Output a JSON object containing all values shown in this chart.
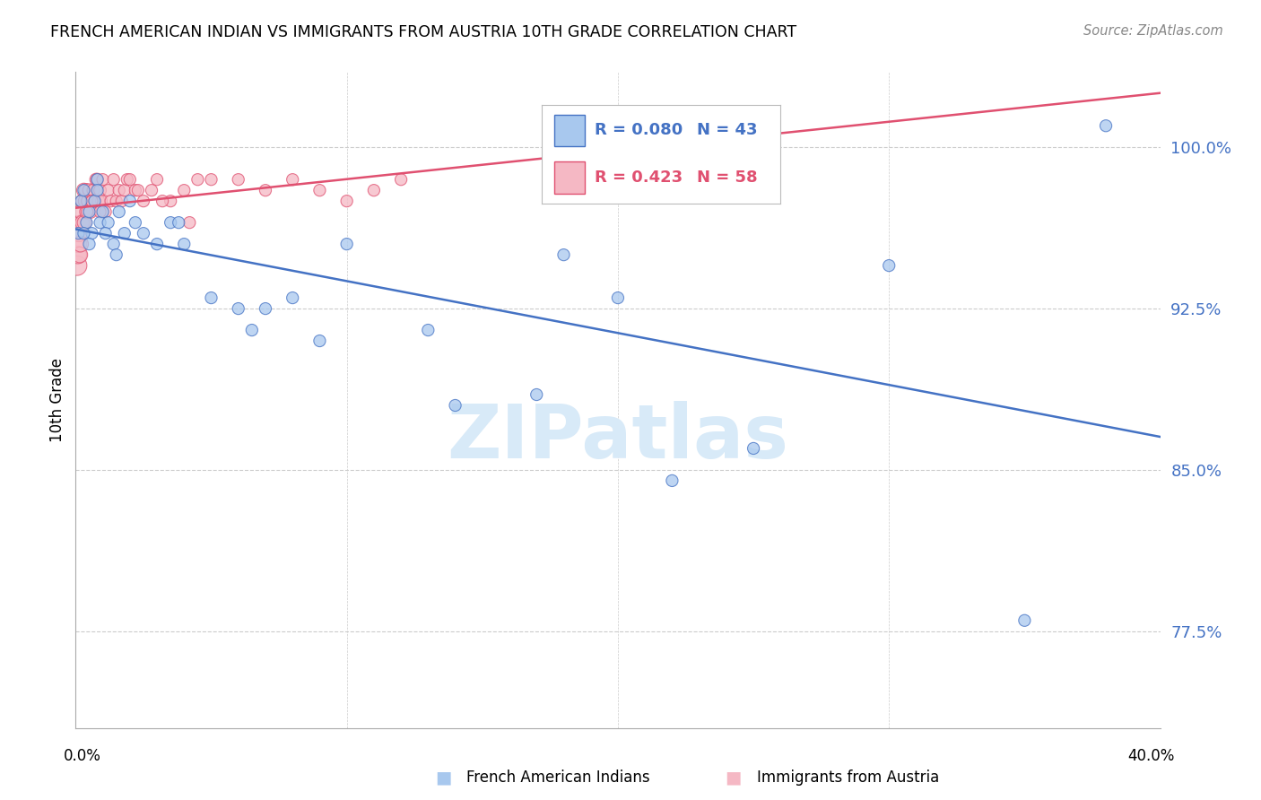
{
  "title": "FRENCH AMERICAN INDIAN VS IMMIGRANTS FROM AUSTRIA 10TH GRADE CORRELATION CHART",
  "source": "Source: ZipAtlas.com",
  "ylabel": "10th Grade",
  "legend_blue_R": "0.080",
  "legend_blue_N": "43",
  "legend_pink_R": "0.423",
  "legend_pink_N": "58",
  "yticks": [
    77.5,
    85.0,
    92.5,
    100.0
  ],
  "ytick_labels": [
    "77.5%",
    "85.0%",
    "92.5%",
    "100.0%"
  ],
  "xlim": [
    0.0,
    40.0
  ],
  "ylim": [
    73.0,
    103.5
  ],
  "blue_color": "#A8C8EE",
  "pink_color": "#F5B8C4",
  "trend_blue": "#4472C4",
  "trend_pink": "#E05070",
  "watermark": "ZIPatlas",
  "watermark_color": "#D8EAF8",
  "blue_points_x": [
    0.1,
    0.2,
    0.3,
    0.4,
    0.5,
    0.6,
    0.7,
    0.8,
    0.9,
    1.0,
    1.2,
    1.4,
    1.6,
    1.8,
    2.0,
    2.5,
    3.0,
    3.5,
    4.0,
    5.0,
    6.0,
    7.0,
    8.0,
    10.0,
    13.0,
    17.0,
    20.0,
    22.0,
    25.0,
    30.0,
    35.0,
    38.0,
    0.3,
    0.5,
    0.8,
    1.1,
    1.5,
    2.2,
    3.8,
    6.5,
    9.0,
    14.0,
    18.0
  ],
  "blue_points_y": [
    96.0,
    97.5,
    98.0,
    96.5,
    97.0,
    96.0,
    97.5,
    98.5,
    96.5,
    97.0,
    96.5,
    95.5,
    97.0,
    96.0,
    97.5,
    96.0,
    95.5,
    96.5,
    95.5,
    93.0,
    92.5,
    92.5,
    93.0,
    95.5,
    91.5,
    88.5,
    93.0,
    84.5,
    86.0,
    94.5,
    78.0,
    101.0,
    96.0,
    95.5,
    98.0,
    96.0,
    95.0,
    96.5,
    96.5,
    91.5,
    91.0,
    88.0,
    95.0
  ],
  "blue_sizes": [
    90,
    90,
    90,
    90,
    90,
    90,
    90,
    90,
    90,
    90,
    90,
    90,
    90,
    90,
    90,
    90,
    90,
    90,
    90,
    90,
    90,
    90,
    90,
    90,
    90,
    90,
    90,
    90,
    90,
    90,
    90,
    90,
    90,
    90,
    90,
    90,
    90,
    90,
    90,
    90,
    90,
    90,
    90
  ],
  "pink_points_x": [
    0.05,
    0.08,
    0.1,
    0.12,
    0.15,
    0.18,
    0.2,
    0.22,
    0.25,
    0.28,
    0.3,
    0.32,
    0.35,
    0.38,
    0.4,
    0.45,
    0.5,
    0.55,
    0.6,
    0.65,
    0.7,
    0.75,
    0.8,
    0.85,
    0.9,
    0.95,
    1.0,
    1.1,
    1.2,
    1.3,
    1.4,
    1.5,
    1.6,
    1.7,
    1.8,
    1.9,
    2.0,
    2.2,
    2.5,
    2.8,
    3.0,
    3.5,
    4.0,
    4.5,
    5.0,
    6.0,
    7.0,
    8.0,
    9.0,
    10.0,
    11.0,
    12.0,
    4.2,
    3.2,
    2.3,
    0.42,
    0.6,
    0.9
  ],
  "pink_points_y": [
    94.5,
    95.0,
    95.5,
    96.0,
    95.0,
    95.5,
    96.5,
    97.0,
    96.5,
    97.5,
    98.0,
    96.5,
    97.5,
    98.0,
    97.0,
    97.5,
    98.0,
    97.0,
    97.5,
    98.0,
    97.5,
    98.5,
    98.5,
    97.5,
    98.0,
    97.5,
    98.5,
    97.0,
    98.0,
    97.5,
    98.5,
    97.5,
    98.0,
    97.5,
    98.0,
    98.5,
    98.5,
    98.0,
    97.5,
    98.0,
    98.5,
    97.5,
    98.0,
    98.5,
    98.5,
    98.5,
    98.0,
    98.5,
    98.0,
    97.5,
    98.0,
    98.5,
    96.5,
    97.5,
    98.0,
    97.0,
    97.5,
    97.0
  ],
  "pink_sizes": [
    250,
    200,
    180,
    180,
    160,
    160,
    150,
    150,
    140,
    140,
    130,
    130,
    120,
    120,
    120,
    110,
    110,
    110,
    100,
    100,
    100,
    100,
    100,
    100,
    100,
    90,
    90,
    90,
    90,
    90,
    90,
    90,
    90,
    90,
    90,
    90,
    90,
    90,
    90,
    90,
    90,
    90,
    90,
    90,
    90,
    90,
    90,
    90,
    90,
    90,
    90,
    90,
    90,
    90,
    90,
    90,
    90,
    90
  ]
}
